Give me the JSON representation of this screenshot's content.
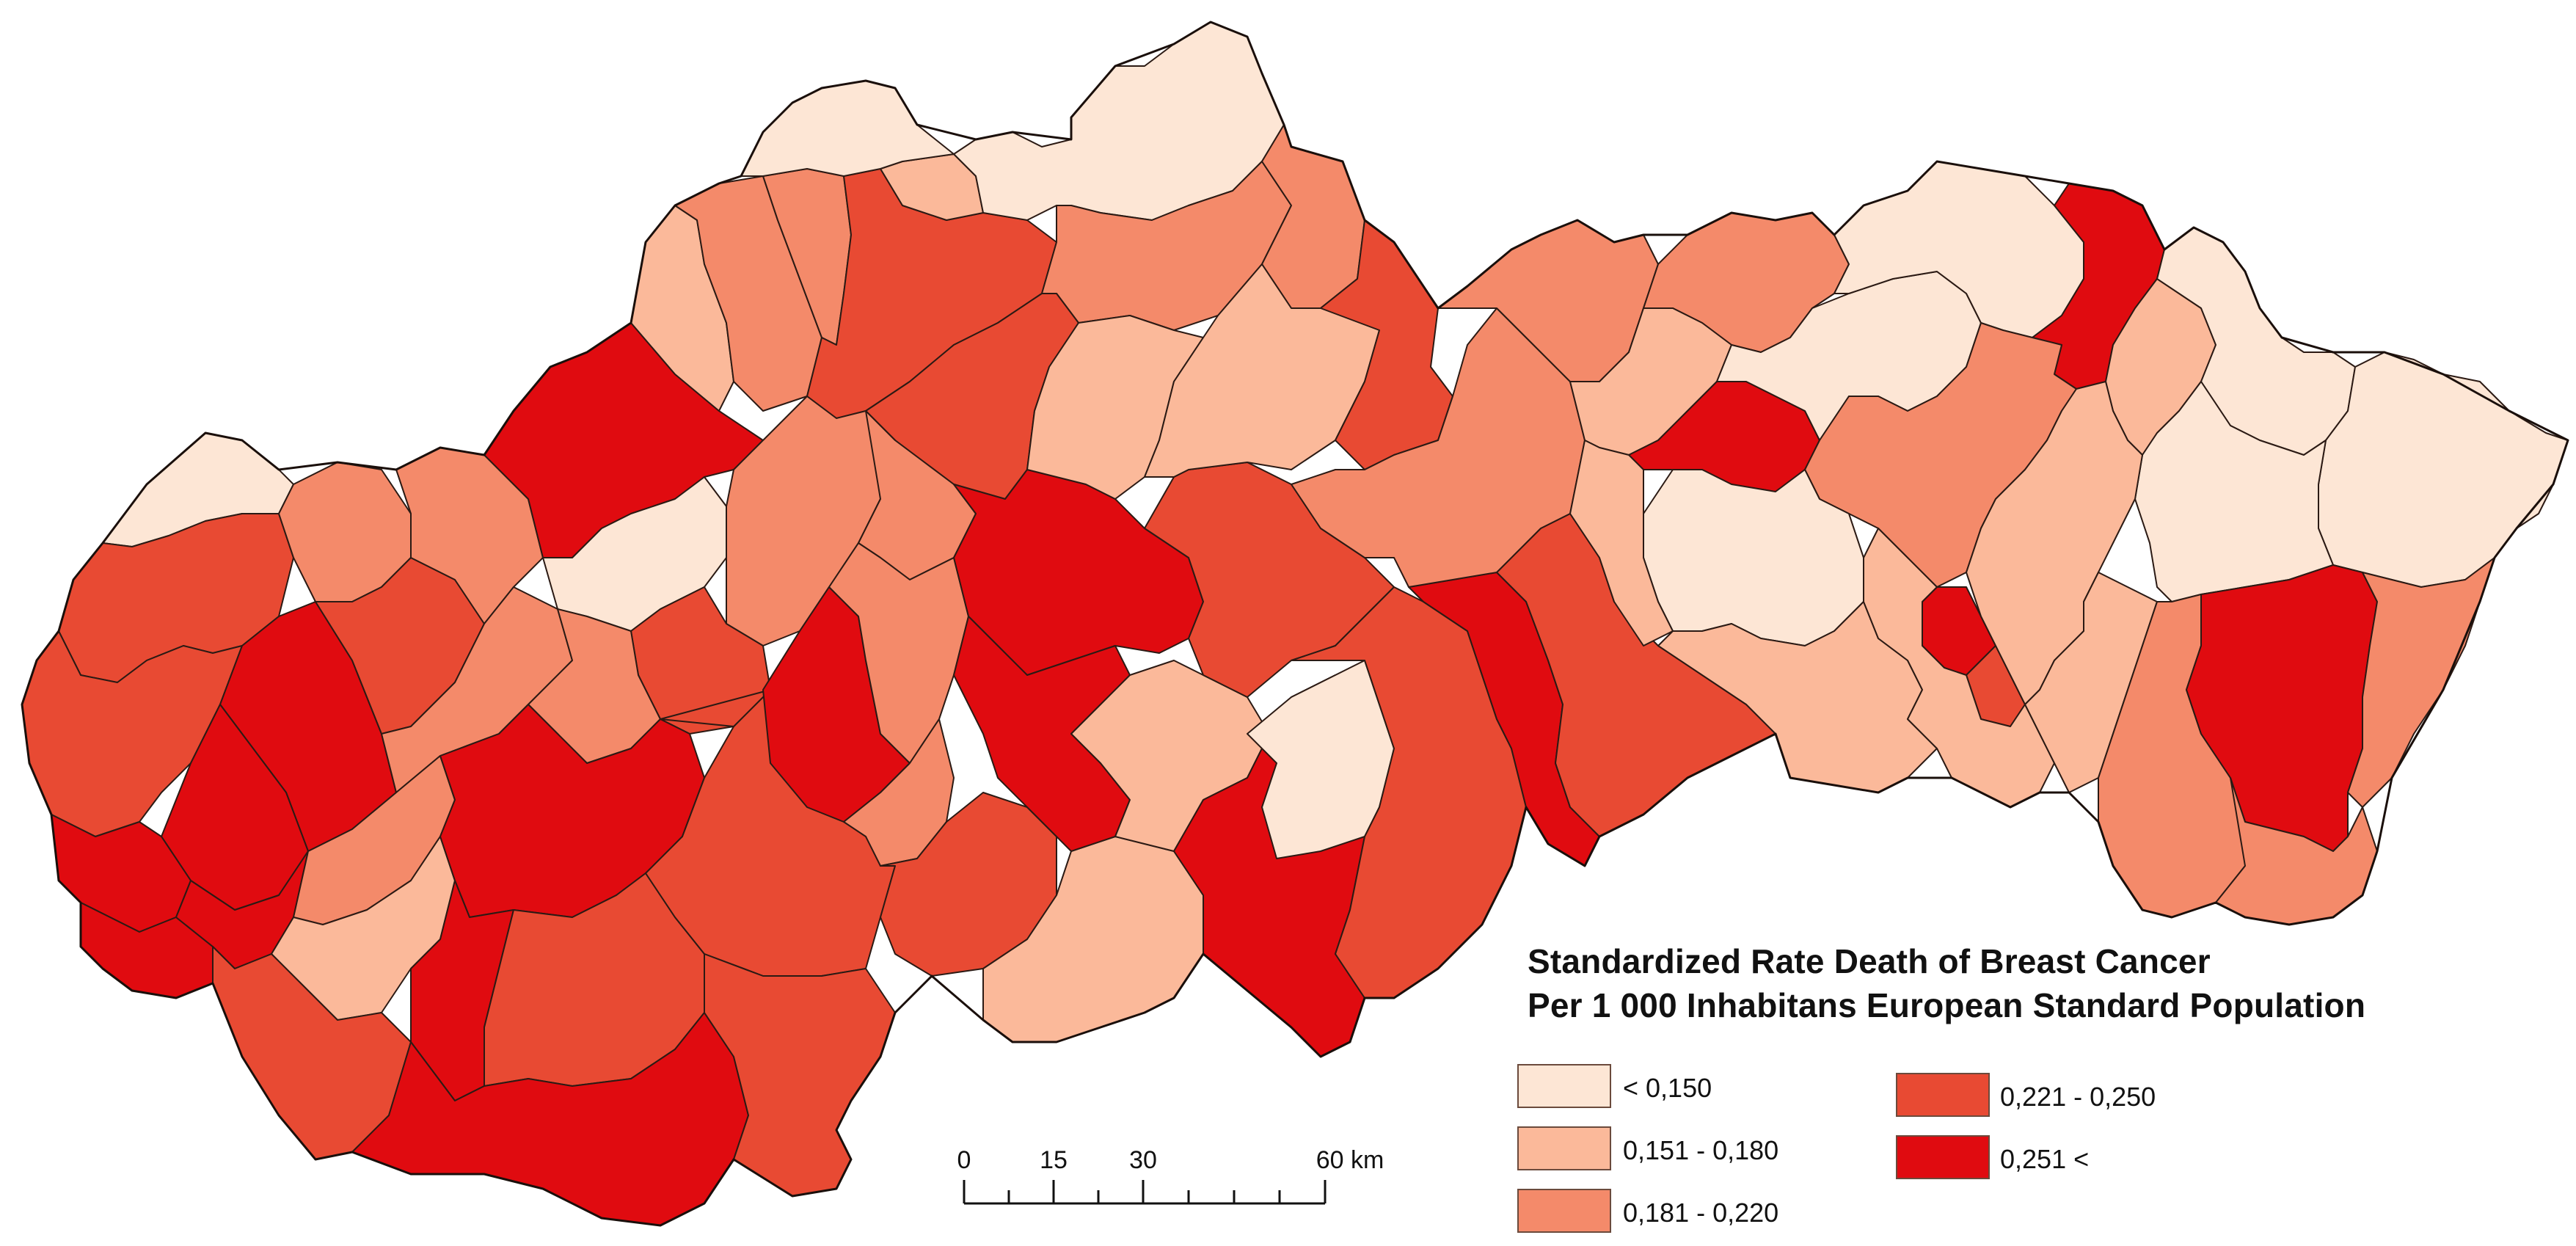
{
  "legend": {
    "title_line1": "Standardized Rate Death of Breast Cancer",
    "title_line2": "Per 1 000 Inhabitans European Standard Population",
    "classes": [
      {
        "label": "< 0,150",
        "color": "#fde6d5"
      },
      {
        "label": "0,151 - 0,180",
        "color": "#fbb99a"
      },
      {
        "label": "0,181 - 0,220",
        "color": "#f48a6a"
      },
      {
        "label": "0,221 - 0,250",
        "color": "#e84a33"
      },
      {
        "label": "0,251 <",
        "color": "#e00b10"
      }
    ]
  },
  "scale_bar": {
    "ticks": [
      "0",
      "15",
      "30",
      "60 km"
    ]
  },
  "colors": {
    "boundary": "#2b1a14",
    "background": "#ffffff"
  }
}
